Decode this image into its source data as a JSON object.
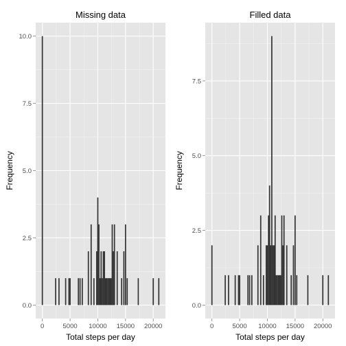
{
  "chart_data": [
    {
      "type": "bar",
      "title": "Missing data",
      "xlabel": "Total steps per day",
      "ylabel": "Frequency",
      "xlim": [
        -1200,
        22200
      ],
      "ylim": [
        -0.5,
        10.5
      ],
      "x_ticks": [
        0,
        5000,
        10000,
        15000,
        20000
      ],
      "y_ticks": [
        0.0,
        2.5,
        5.0,
        7.5,
        10.0
      ],
      "x_tick_labels": [
        "0",
        "5000",
        "10000",
        "15000",
        "20000"
      ],
      "y_tick_labels": [
        "0.0",
        "2.5",
        "5.0",
        "7.5",
        "10.0"
      ],
      "binwidth": 212,
      "bars": [
        {
          "x": 0,
          "y": 10
        },
        {
          "x": 2400,
          "y": 1
        },
        {
          "x": 3000,
          "y": 1
        },
        {
          "x": 4200,
          "y": 1
        },
        {
          "x": 4800,
          "y": 1
        },
        {
          "x": 5000,
          "y": 1
        },
        {
          "x": 6500,
          "y": 1
        },
        {
          "x": 6800,
          "y": 1
        },
        {
          "x": 7200,
          "y": 1
        },
        {
          "x": 8300,
          "y": 2
        },
        {
          "x": 8800,
          "y": 3
        },
        {
          "x": 9300,
          "y": 1
        },
        {
          "x": 9800,
          "y": 2
        },
        {
          "x": 10000,
          "y": 4
        },
        {
          "x": 10200,
          "y": 3
        },
        {
          "x": 10400,
          "y": 1
        },
        {
          "x": 10600,
          "y": 2
        },
        {
          "x": 10800,
          "y": 1
        },
        {
          "x": 11000,
          "y": 2
        },
        {
          "x": 11200,
          "y": 2
        },
        {
          "x": 11400,
          "y": 1
        },
        {
          "x": 11600,
          "y": 1
        },
        {
          "x": 11800,
          "y": 1
        },
        {
          "x": 12000,
          "y": 1
        },
        {
          "x": 12200,
          "y": 1
        },
        {
          "x": 12400,
          "y": 1
        },
        {
          "x": 12600,
          "y": 3
        },
        {
          "x": 12800,
          "y": 2
        },
        {
          "x": 13000,
          "y": 3
        },
        {
          "x": 13500,
          "y": 2
        },
        {
          "x": 14300,
          "y": 1
        },
        {
          "x": 14700,
          "y": 2
        },
        {
          "x": 15000,
          "y": 3
        },
        {
          "x": 15300,
          "y": 1
        },
        {
          "x": 17300,
          "y": 1
        },
        {
          "x": 20000,
          "y": 1
        },
        {
          "x": 21000,
          "y": 1
        }
      ]
    },
    {
      "type": "bar",
      "title": "Filled data",
      "xlabel": "Total steps per day",
      "ylabel": "Frequency",
      "xlim": [
        -1200,
        22200
      ],
      "ylim": [
        -0.45,
        9.45
      ],
      "x_ticks": [
        0,
        5000,
        10000,
        15000,
        20000
      ],
      "y_ticks": [
        0.0,
        2.5,
        5.0,
        7.5
      ],
      "x_tick_labels": [
        "0",
        "5000",
        "10000",
        "15000",
        "20000"
      ],
      "y_tick_labels": [
        "0.0",
        "2.5",
        "5.0",
        "7.5"
      ],
      "binwidth": 212,
      "bars": [
        {
          "x": 0,
          "y": 2
        },
        {
          "x": 2400,
          "y": 1
        },
        {
          "x": 3000,
          "y": 1
        },
        {
          "x": 4200,
          "y": 1
        },
        {
          "x": 4800,
          "y": 1
        },
        {
          "x": 5000,
          "y": 1
        },
        {
          "x": 6500,
          "y": 1
        },
        {
          "x": 6800,
          "y": 1
        },
        {
          "x": 7200,
          "y": 1
        },
        {
          "x": 8300,
          "y": 2
        },
        {
          "x": 8800,
          "y": 3
        },
        {
          "x": 9300,
          "y": 1
        },
        {
          "x": 9800,
          "y": 2
        },
        {
          "x": 10000,
          "y": 2
        },
        {
          "x": 10200,
          "y": 3
        },
        {
          "x": 10400,
          "y": 4
        },
        {
          "x": 10600,
          "y": 2
        },
        {
          "x": 10800,
          "y": 9
        },
        {
          "x": 11000,
          "y": 2
        },
        {
          "x": 11200,
          "y": 2
        },
        {
          "x": 11400,
          "y": 3
        },
        {
          "x": 11600,
          "y": 1
        },
        {
          "x": 11800,
          "y": 1
        },
        {
          "x": 12000,
          "y": 1
        },
        {
          "x": 12200,
          "y": 1
        },
        {
          "x": 12400,
          "y": 1
        },
        {
          "x": 12600,
          "y": 3
        },
        {
          "x": 12800,
          "y": 2
        },
        {
          "x": 13000,
          "y": 3
        },
        {
          "x": 13500,
          "y": 2
        },
        {
          "x": 14300,
          "y": 1
        },
        {
          "x": 14700,
          "y": 2
        },
        {
          "x": 15000,
          "y": 3
        },
        {
          "x": 15300,
          "y": 1
        },
        {
          "x": 17300,
          "y": 1
        },
        {
          "x": 20000,
          "y": 1
        },
        {
          "x": 21000,
          "y": 1
        }
      ]
    }
  ]
}
